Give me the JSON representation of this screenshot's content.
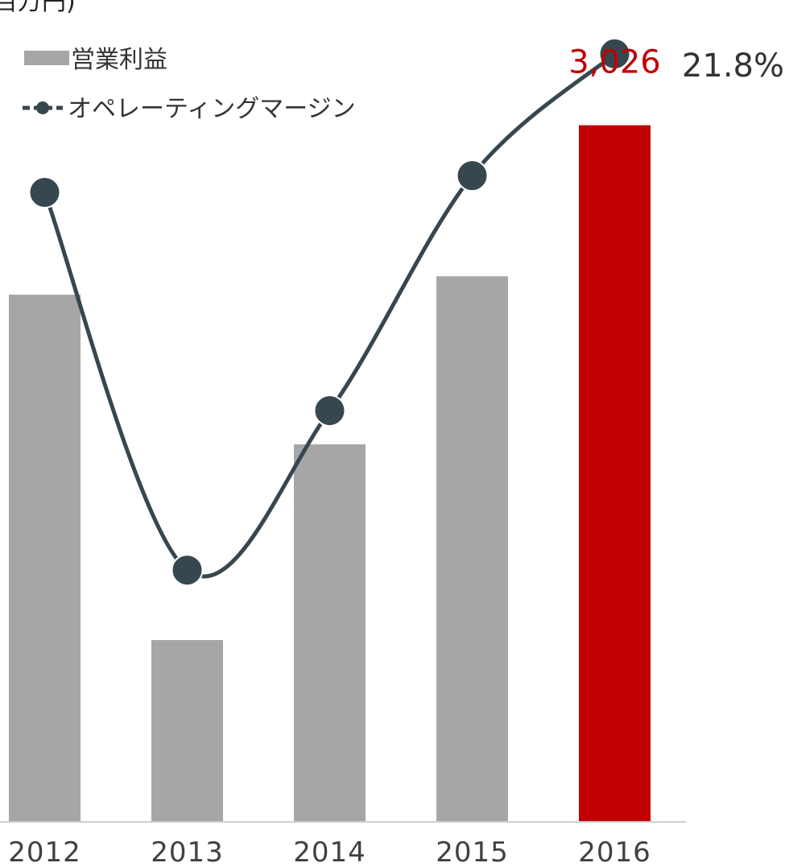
{
  "chart_data": {
    "type": "bar",
    "unit_label_partial": "百万円)",
    "categories": [
      "2012",
      "2013",
      "2014",
      "2015",
      "2016"
    ],
    "series": [
      {
        "name": "営業利益",
        "kind": "bar",
        "values": [
          2290,
          790,
          1640,
          2370,
          3026
        ],
        "color": "#a6a6a6",
        "highlight_color": "#c00000",
        "highlight_index": 4,
        "value_labels": {
          "4": "3,026"
        }
      },
      {
        "name": "オペレーティングマージン",
        "kind": "line",
        "axis": "secondary",
        "values": [
          18.5,
          9.5,
          13.3,
          18.9,
          21.8
        ],
        "color": "#37474f",
        "value_labels": {
          "4": "21.8%"
        }
      }
    ],
    "ylim": [
      0,
      3500
    ],
    "y2lim": [
      3.5,
      22.7
    ],
    "legend": "top-left",
    "grid": false
  }
}
